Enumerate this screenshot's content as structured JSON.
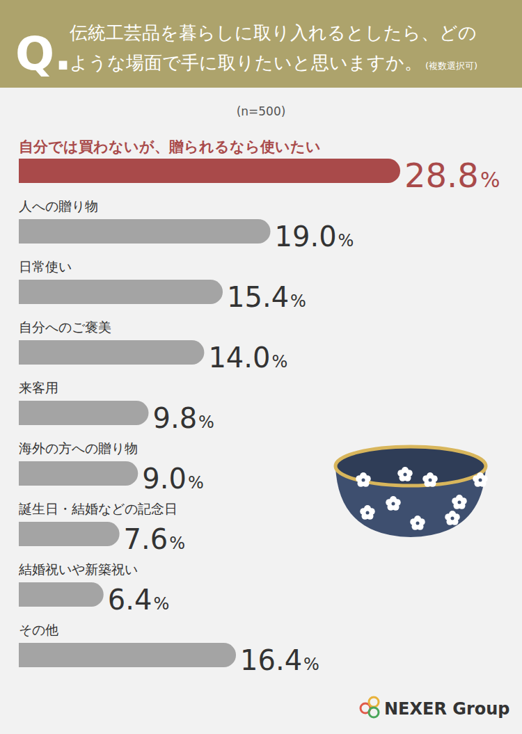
{
  "chart_data": {
    "type": "bar",
    "orientation": "horizontal",
    "title": "伝統工芸品を暮らしに取り入れるとしたら、どのような場面で手に取りたいと思いますか。",
    "annotations": [
      "Q.",
      "(複数選択可)",
      "(n=500)",
      "NEXER Group"
    ],
    "categories": [
      "自分では買わないが、贈られるなら使いたい",
      "人への贈り物",
      "日常使い",
      "自分へのご褒美",
      "来客用",
      "海外の方への贈り物",
      "誕生日・結婚などの記念日",
      "結婚祝いや新築祝い",
      "その他"
    ],
    "values": [
      28.8,
      19.0,
      15.4,
      14.0,
      9.8,
      9.0,
      7.6,
      6.4,
      16.4
    ],
    "value_labels": [
      "28.8%",
      "19.0%",
      "15.4%",
      "14.0%",
      "9.8%",
      "9.0%",
      "7.6%",
      "6.4%",
      "16.4%"
    ],
    "colors": [
      "#a94a4a",
      "#a4a4a4",
      "#a4a4a4",
      "#a4a4a4",
      "#a4a4a4",
      "#a4a4a4",
      "#a4a4a4",
      "#a4a4a4",
      "#a4a4a4"
    ],
    "data_labels": true,
    "tick_labels": false,
    "grid": false
  }
}
